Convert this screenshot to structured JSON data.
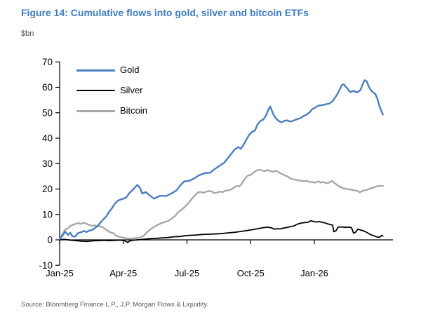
{
  "figure": {
    "title": "Figure 14: Cumulative flows into gold, silver and bitcoin ETFs",
    "units_label": "$bn",
    "source": "Source: Bloomberg Finance L.P., J.P. Morgan Flows & Liquidity."
  },
  "colors": {
    "title_text": "#3e7cc0",
    "axis": "#000000",
    "tick_text": "#000000",
    "source_text": "#595959"
  },
  "chart_data": {
    "type": "line",
    "title": "Figure 14: Cumulative flows into gold, silver and bitcoin ETFs",
    "ylabel": "$bn",
    "ylim": [
      -10,
      70
    ],
    "yticks": [
      70,
      60,
      50,
      40,
      30,
      20,
      10,
      0,
      -10
    ],
    "x_unit": "months since Jan-2025",
    "xticks": [
      {
        "m": 0,
        "label": "Jan-25"
      },
      {
        "m": 3,
        "label": "Apr-25"
      },
      {
        "m": 6,
        "label": "Jul-25"
      },
      {
        "m": 9,
        "label": "Oct-25"
      },
      {
        "m": 12,
        "label": "Jan-26"
      }
    ],
    "grid": false,
    "legend_position": "top-left-inside",
    "series": [
      {
        "name": "Gold",
        "color": "#4a7ebc",
        "stroke_width": 2.4,
        "points": [
          [
            0,
            0.3
          ],
          [
            0.1,
            1.2
          ],
          [
            0.26,
            3.2
          ],
          [
            0.4,
            1.9
          ],
          [
            0.5,
            2.8
          ],
          [
            0.6,
            1.4
          ],
          [
            0.73,
            1.3
          ],
          [
            0.86,
            2.6
          ],
          [
            1,
            3
          ],
          [
            1.16,
            3.5
          ],
          [
            1.26,
            3.1
          ],
          [
            1.4,
            3.6
          ],
          [
            1.56,
            4
          ],
          [
            1.7,
            4.9
          ],
          [
            1.8,
            5.5
          ],
          [
            1.92,
            6.8
          ],
          [
            2.05,
            8
          ],
          [
            2.18,
            9
          ],
          [
            2.31,
            10.8
          ],
          [
            2.47,
            12.5
          ],
          [
            2.6,
            14.2
          ],
          [
            2.72,
            15.3
          ],
          [
            2.85,
            15.8
          ],
          [
            3,
            16.2
          ],
          [
            3.13,
            16.6
          ],
          [
            3.3,
            18.5
          ],
          [
            3.46,
            19.8
          ],
          [
            3.66,
            21.6
          ],
          [
            3.79,
            20.4
          ],
          [
            3.89,
            18.2
          ],
          [
            4.06,
            18.8
          ],
          [
            4.22,
            17.6
          ],
          [
            4.45,
            16.2
          ],
          [
            4.6,
            16.8
          ],
          [
            4.71,
            17.3
          ],
          [
            5.04,
            17.3
          ],
          [
            5.28,
            18.3
          ],
          [
            5.51,
            19.5
          ],
          [
            5.67,
            21.3
          ],
          [
            5.87,
            23
          ],
          [
            6.1,
            23.2
          ],
          [
            6.36,
            24.3
          ],
          [
            6.59,
            25.5
          ],
          [
            6.86,
            26.3
          ],
          [
            7.09,
            26.4
          ],
          [
            7.25,
            27.5
          ],
          [
            7.42,
            28.5
          ],
          [
            7.58,
            29.4
          ],
          [
            7.75,
            30.3
          ],
          [
            7.91,
            32
          ],
          [
            8.08,
            33.8
          ],
          [
            8.24,
            35.5
          ],
          [
            8.41,
            36.5
          ],
          [
            8.54,
            35.8
          ],
          [
            8.67,
            37.5
          ],
          [
            8.8,
            39.5
          ],
          [
            8.93,
            41.3
          ],
          [
            9.07,
            42.5
          ],
          [
            9.2,
            43
          ],
          [
            9.33,
            45.5
          ],
          [
            9.46,
            46.8
          ],
          [
            9.59,
            47.3
          ],
          [
            9.73,
            49
          ],
          [
            9.82,
            51
          ],
          [
            9.92,
            52.5
          ],
          [
            10.06,
            49.5
          ],
          [
            10.19,
            47.8
          ],
          [
            10.32,
            46.8
          ],
          [
            10.45,
            46.2
          ],
          [
            10.58,
            46.8
          ],
          [
            10.72,
            47
          ],
          [
            10.85,
            46.5
          ],
          [
            10.98,
            46.8
          ],
          [
            11.11,
            47.2
          ],
          [
            11.24,
            47.6
          ],
          [
            11.37,
            48
          ],
          [
            11.51,
            48.8
          ],
          [
            11.64,
            49.3
          ],
          [
            11.77,
            50.1
          ],
          [
            11.9,
            51.4
          ],
          [
            12.03,
            52
          ],
          [
            12.2,
            52.8
          ],
          [
            12.36,
            53
          ],
          [
            12.53,
            53.3
          ],
          [
            12.69,
            53.6
          ],
          [
            12.86,
            54.5
          ],
          [
            13.02,
            56.5
          ],
          [
            13.16,
            58.5
          ],
          [
            13.29,
            60.8
          ],
          [
            13.39,
            61.2
          ],
          [
            13.49,
            60.1
          ],
          [
            13.58,
            59.3
          ],
          [
            13.68,
            58.1
          ],
          [
            13.78,
            58.4
          ],
          [
            13.88,
            58.6
          ],
          [
            13.98,
            58
          ],
          [
            14.08,
            58.3
          ],
          [
            14.18,
            59
          ],
          [
            14.28,
            61.3
          ],
          [
            14.37,
            62.8
          ],
          [
            14.47,
            62.4
          ],
          [
            14.57,
            60.2
          ],
          [
            14.67,
            58.8
          ],
          [
            14.77,
            58
          ],
          [
            14.87,
            57.4
          ],
          [
            14.97,
            55.5
          ],
          [
            15.07,
            52.5
          ],
          [
            15.17,
            50.5
          ],
          [
            15.23,
            49.3
          ]
        ]
      },
      {
        "name": "Silver",
        "color": "#000000",
        "stroke_width": 1.8,
        "points": [
          [
            0,
            0
          ],
          [
            0.23,
            0.2
          ],
          [
            0.49,
            -0.1
          ],
          [
            0.76,
            -0.3
          ],
          [
            1.02,
            -0.5
          ],
          [
            1.29,
            -0.6
          ],
          [
            1.55,
            -0.4
          ],
          [
            1.81,
            -0.3
          ],
          [
            2.08,
            -0.2
          ],
          [
            2.34,
            -0.3
          ],
          [
            2.6,
            -0.2
          ],
          [
            2.87,
            -0.1
          ],
          [
            3.07,
            -0.4
          ],
          [
            3.2,
            -1
          ],
          [
            3.33,
            -0.3
          ],
          [
            3.53,
            -0.1
          ],
          [
            3.79,
            0.1
          ],
          [
            4.06,
            0.3
          ],
          [
            4.32,
            0.5
          ],
          [
            4.58,
            0.6
          ],
          [
            4.85,
            0.8
          ],
          [
            5.11,
            0.9
          ],
          [
            5.37,
            1.2
          ],
          [
            5.64,
            1.3
          ],
          [
            5.9,
            1.6
          ],
          [
            6.17,
            1.8
          ],
          [
            6.43,
            1.9
          ],
          [
            6.69,
            2.1
          ],
          [
            6.96,
            2.2
          ],
          [
            7.22,
            2.3
          ],
          [
            7.48,
            2.4
          ],
          [
            7.75,
            2.6
          ],
          [
            8.01,
            2.8
          ],
          [
            8.28,
            3
          ],
          [
            8.54,
            3.3
          ],
          [
            8.8,
            3.6
          ],
          [
            9.07,
            4
          ],
          [
            9.33,
            4.4
          ],
          [
            9.59,
            4.8
          ],
          [
            9.79,
            5
          ],
          [
            9.99,
            4.7
          ],
          [
            10.12,
            4.2
          ],
          [
            10.25,
            4.4
          ],
          [
            10.39,
            4.3
          ],
          [
            10.55,
            4.6
          ],
          [
            10.72,
            4.9
          ],
          [
            10.88,
            5.2
          ],
          [
            11.04,
            5.5
          ],
          [
            11.21,
            6.2
          ],
          [
            11.37,
            6.6
          ],
          [
            11.54,
            6.8
          ],
          [
            11.7,
            6.9
          ],
          [
            11.83,
            7.5
          ],
          [
            11.97,
            7.2
          ],
          [
            12.1,
            7
          ],
          [
            12.23,
            7.2
          ],
          [
            12.36,
            6.9
          ],
          [
            12.49,
            6.7
          ],
          [
            12.63,
            6.3
          ],
          [
            12.76,
            6
          ],
          [
            12.86,
            5.8
          ],
          [
            12.92,
            3.2
          ],
          [
            13.02,
            3.6
          ],
          [
            13.12,
            5
          ],
          [
            13.29,
            5.1
          ],
          [
            13.45,
            4.9
          ],
          [
            13.62,
            5
          ],
          [
            13.75,
            4.8
          ],
          [
            13.85,
            2.6
          ],
          [
            13.95,
            3.1
          ],
          [
            14.05,
            4.2
          ],
          [
            14.14,
            4
          ],
          [
            14.28,
            3.6
          ],
          [
            14.41,
            3.2
          ],
          [
            14.54,
            2.6
          ],
          [
            14.67,
            2
          ],
          [
            14.8,
            1.6
          ],
          [
            14.93,
            1.2
          ],
          [
            15.07,
            1
          ],
          [
            15.17,
            1.8
          ],
          [
            15.23,
            1.5
          ]
        ]
      },
      {
        "name": "Bitcoin",
        "color": "#a8a8a8",
        "stroke_width": 2.4,
        "points": [
          [
            0,
            0.3
          ],
          [
            0.1,
            1.8
          ],
          [
            0.26,
            4
          ],
          [
            0.4,
            4.6
          ],
          [
            0.5,
            5.5
          ],
          [
            0.66,
            6
          ],
          [
            0.86,
            6.6
          ],
          [
            1,
            6.3
          ],
          [
            1.12,
            6.7
          ],
          [
            1.25,
            6.4
          ],
          [
            1.38,
            5.9
          ],
          [
            1.52,
            5.5
          ],
          [
            1.65,
            5.7
          ],
          [
            1.78,
            5.3
          ],
          [
            1.91,
            5.3
          ],
          [
            2.04,
            4.9
          ],
          [
            2.21,
            3.9
          ],
          [
            2.34,
            3.1
          ],
          [
            2.54,
            2.6
          ],
          [
            2.64,
            1.7
          ],
          [
            2.8,
            1.2
          ],
          [
            2.97,
            0.9
          ],
          [
            3.13,
            0.6
          ],
          [
            3.3,
            0.5
          ],
          [
            3.46,
            0.6
          ],
          [
            3.63,
            0.7
          ],
          [
            3.79,
            0.9
          ],
          [
            3.96,
            1.6
          ],
          [
            4.12,
            3
          ],
          [
            4.29,
            4.2
          ],
          [
            4.45,
            5.1
          ],
          [
            4.62,
            5.9
          ],
          [
            4.78,
            6.5
          ],
          [
            4.95,
            7
          ],
          [
            5.11,
            7.4
          ],
          [
            5.28,
            8.4
          ],
          [
            5.44,
            9.4
          ],
          [
            5.6,
            11
          ],
          [
            5.77,
            12
          ],
          [
            5.93,
            13.2
          ],
          [
            6.1,
            14.8
          ],
          [
            6.26,
            16.5
          ],
          [
            6.36,
            17.3
          ],
          [
            6.5,
            18.6
          ],
          [
            6.63,
            18.9
          ],
          [
            6.76,
            18.5
          ],
          [
            6.89,
            18.9
          ],
          [
            7.02,
            19.2
          ],
          [
            7.16,
            19
          ],
          [
            7.29,
            18.4
          ],
          [
            7.42,
            18.6
          ],
          [
            7.55,
            19
          ],
          [
            7.68,
            18.8
          ],
          [
            7.81,
            19.3
          ],
          [
            7.95,
            19.5
          ],
          [
            8.08,
            19.8
          ],
          [
            8.21,
            20.5
          ],
          [
            8.34,
            21.2
          ],
          [
            8.47,
            21
          ],
          [
            8.61,
            22.5
          ],
          [
            8.74,
            24.2
          ],
          [
            8.87,
            25.3
          ],
          [
            9,
            25.6
          ],
          [
            9.13,
            26.4
          ],
          [
            9.26,
            27.2
          ],
          [
            9.4,
            27.6
          ],
          [
            9.53,
            27.3
          ],
          [
            9.66,
            27
          ],
          [
            9.79,
            27.5
          ],
          [
            9.92,
            27
          ],
          [
            10.06,
            26.8
          ],
          [
            10.19,
            27.2
          ],
          [
            10.32,
            26.6
          ],
          [
            10.45,
            26
          ],
          [
            10.58,
            25.5
          ],
          [
            10.72,
            25
          ],
          [
            10.85,
            24.3
          ],
          [
            10.98,
            23.8
          ],
          [
            11.11,
            23.7
          ],
          [
            11.24,
            23.4
          ],
          [
            11.37,
            23.3
          ],
          [
            11.51,
            23
          ],
          [
            11.64,
            23.2
          ],
          [
            11.77,
            22.8
          ],
          [
            11.9,
            22.7
          ],
          [
            12.03,
            22.5
          ],
          [
            12.2,
            23
          ],
          [
            12.3,
            22.5
          ],
          [
            12.43,
            22.8
          ],
          [
            12.56,
            22.3
          ],
          [
            12.69,
            22.5
          ],
          [
            12.83,
            23.2
          ],
          [
            12.96,
            22.3
          ],
          [
            13.09,
            21.5
          ],
          [
            13.22,
            20.8
          ],
          [
            13.35,
            20.3
          ],
          [
            13.52,
            20
          ],
          [
            13.68,
            19.8
          ],
          [
            13.85,
            19.5
          ],
          [
            14.01,
            19.3
          ],
          [
            14.14,
            18.7
          ],
          [
            14.28,
            19.3
          ],
          [
            14.41,
            19.5
          ],
          [
            14.54,
            19.8
          ],
          [
            14.67,
            20.3
          ],
          [
            14.8,
            20.6
          ],
          [
            14.93,
            21
          ],
          [
            15.07,
            21.2
          ],
          [
            15.23,
            21.2
          ]
        ]
      }
    ]
  }
}
